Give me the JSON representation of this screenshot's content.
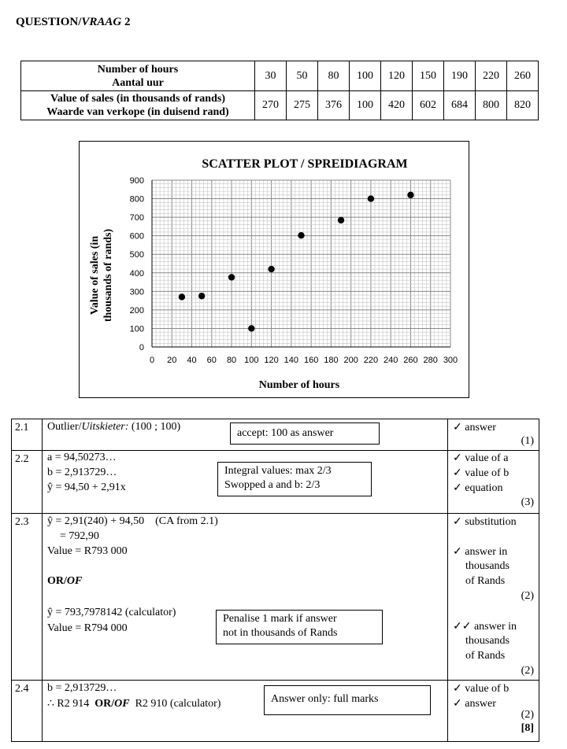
{
  "question_title": {
    "main": "QUESTION/",
    "italic": "VRAAG",
    "num": " 2"
  },
  "data_table": {
    "row1_header": [
      "Number of hours",
      "Aantal uur"
    ],
    "row1_values": [
      "30",
      "50",
      "80",
      "100",
      "120",
      "150",
      "190",
      "220",
      "260"
    ],
    "row2_header": [
      "Value of sales (in thousands of rands)",
      "Waarde van verkope (in duisend rand)"
    ],
    "row2_values": [
      "270",
      "275",
      "376",
      "100",
      "420",
      "602",
      "684",
      "800",
      "820"
    ]
  },
  "chart_data": {
    "type": "scatter",
    "title": "SCATTER PLOT / SPREIDIAGRAM",
    "xlabel": "Number of hours",
    "ylabel": "Value of sales (in thousands of rands)",
    "xlim": [
      0,
      300
    ],
    "ylim": [
      0,
      900
    ],
    "x_ticks": [
      "0",
      "20",
      "40",
      "60",
      "80",
      "100",
      "120",
      "140",
      "160",
      "180",
      "200",
      "220",
      "240",
      "260",
      "280",
      "300"
    ],
    "y_ticks": [
      "0",
      "100",
      "200",
      "300",
      "400",
      "500",
      "600",
      "700",
      "800",
      "900"
    ],
    "grid": true,
    "points": [
      {
        "x": 30,
        "y": 270
      },
      {
        "x": 50,
        "y": 275
      },
      {
        "x": 80,
        "y": 376
      },
      {
        "x": 100,
        "y": 100
      },
      {
        "x": 120,
        "y": 420
      },
      {
        "x": 150,
        "y": 602
      },
      {
        "x": 190,
        "y": 684
      },
      {
        "x": 220,
        "y": 800
      },
      {
        "x": 260,
        "y": 820
      }
    ]
  },
  "memo": {
    "q21": {
      "nr": "2.1",
      "text": "Outlier/",
      "text_italic": "Uitskieter:",
      "text_tail": "(100 ; 100)",
      "box": "accept:  100 as answer",
      "marks": [
        "✓ answer"
      ],
      "total": "(1)"
    },
    "q22": {
      "nr": "2.2",
      "lines": [
        "a = 94,50273…",
        "b = 2,913729…",
        "ŷ = 94,50 + 2,91x"
      ],
      "box": [
        "Integral values:  max 2/3",
        "Swopped a and b:  2/3"
      ],
      "marks": [
        "✓ value of a",
        "✓ value of b",
        "✓ equation"
      ],
      "total": "(3)"
    },
    "q23": {
      "nr": "2.3",
      "l1": "ŷ = 2,91(240) + 94,50",
      "l1_ca": "(CA from 2.1)",
      "l2": "= 792,90",
      "l3": "Value = R793 000",
      "or": "OR/",
      "or_italic": "OF",
      "l4": "ŷ = 793,7978142 (calculator)",
      "l5": "Value = R794 000",
      "box": [
        "Penalise 1 mark if answer",
        "not in thousands of Rands"
      ],
      "marks1": [
        "✓ substitution"
      ],
      "marks2": [
        "✓ answer in",
        "thousands",
        "of Rands"
      ],
      "total1": "(2)",
      "marks3": [
        "✓✓ answer in",
        "thousands",
        "of Rands"
      ],
      "total2": "(2)"
    },
    "q24": {
      "nr": "2.4",
      "l1": "b = 2,913729…",
      "l2a": "∴ R2 914",
      "l2b": "OR/",
      "l2c": "OF",
      "l2d": "R2 910 (calculator)",
      "box": "Answer only: full marks",
      "marks": [
        "✓ value of b",
        "✓ answer"
      ],
      "total": "(2)",
      "grand_total": "[8]"
    }
  }
}
